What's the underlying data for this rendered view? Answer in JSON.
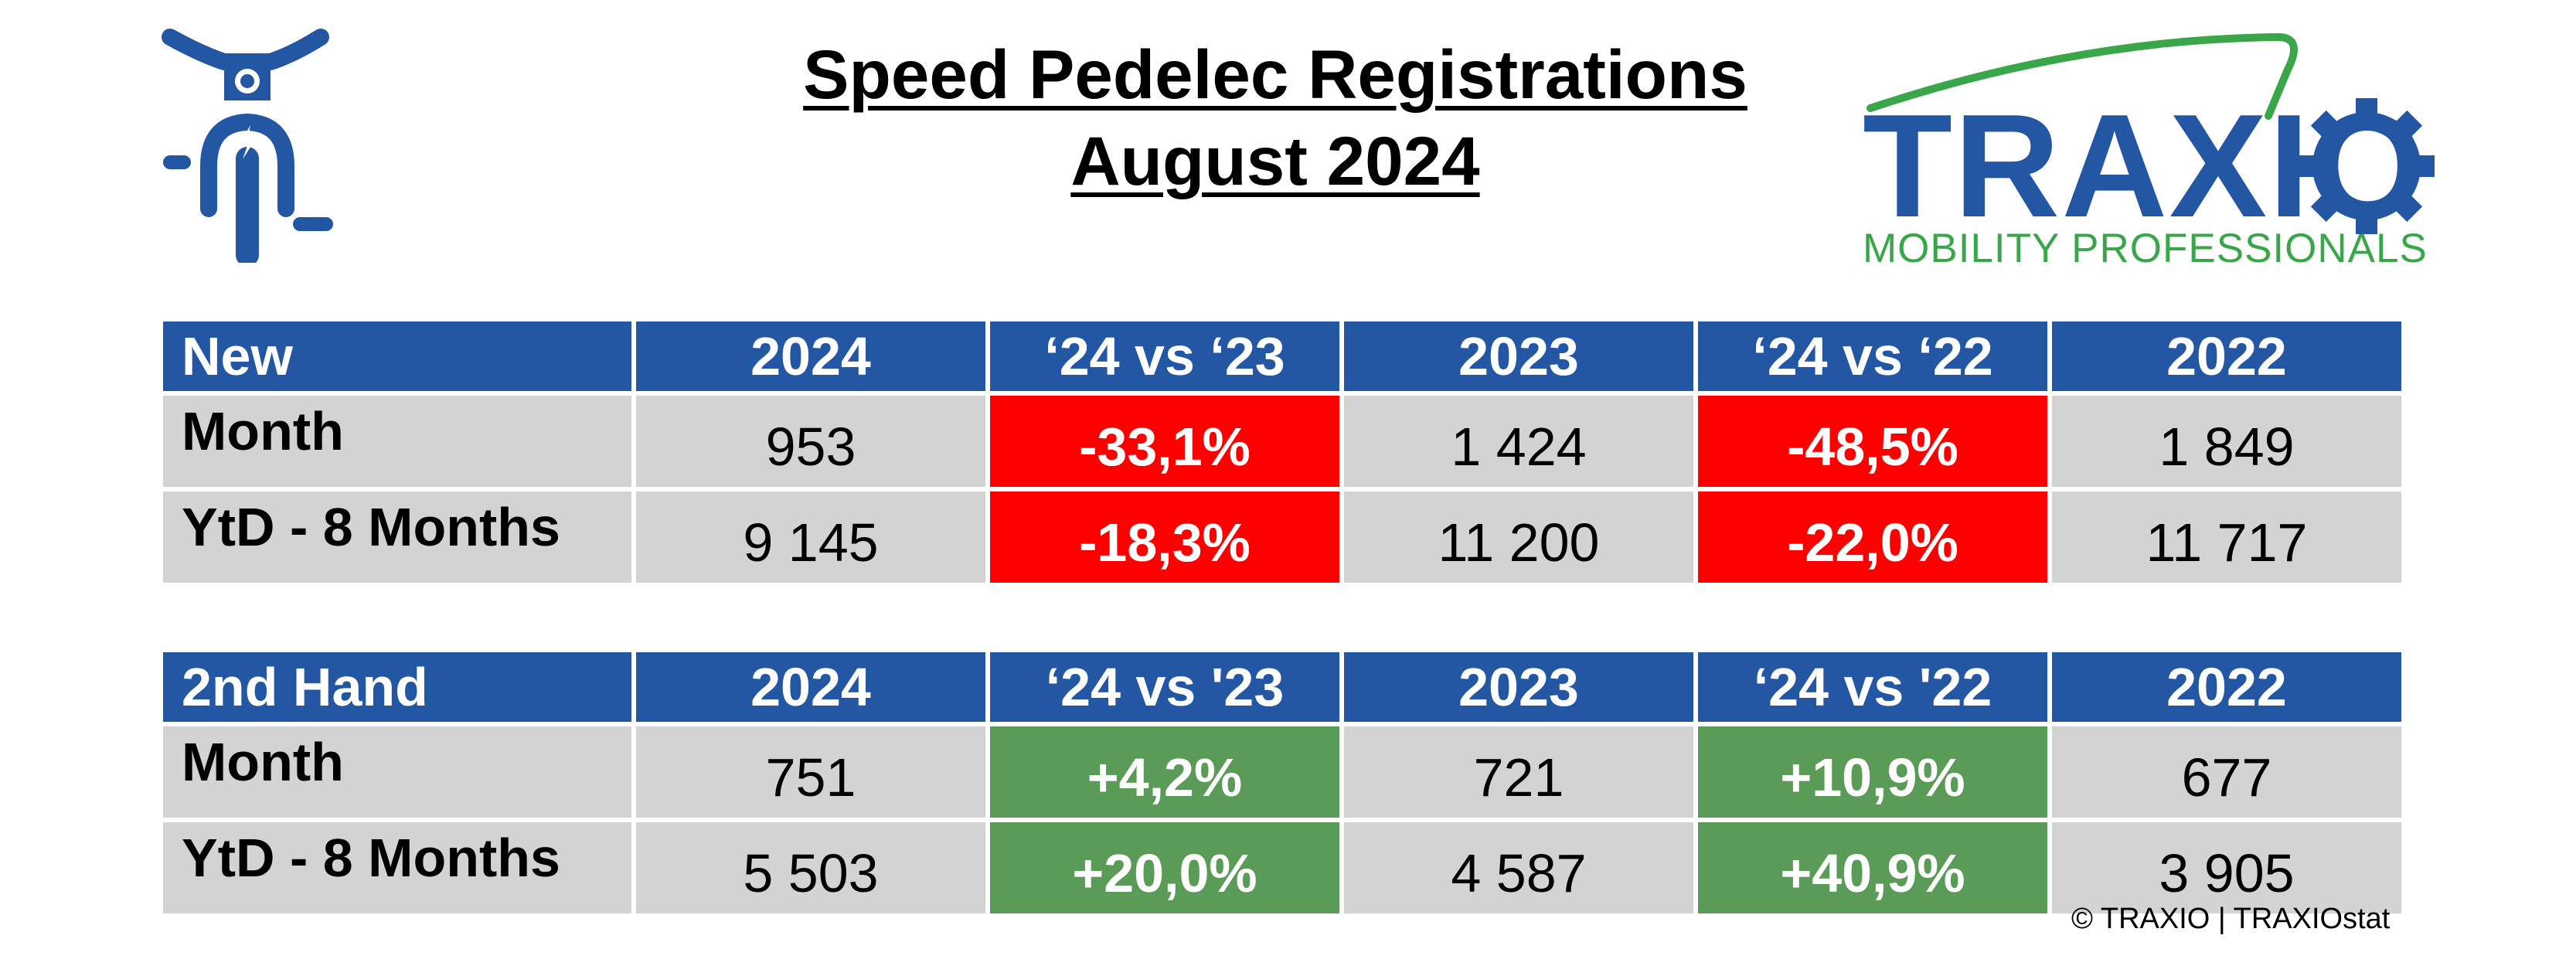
{
  "title": {
    "line1": "Speed Pedelec Registrations",
    "line2": "August 2024"
  },
  "logo": {
    "word": "TRAXIO",
    "tagline": "MOBILITY PROFESSIONALS",
    "icon": "gear-icon",
    "colors": {
      "blue": "#2356a3",
      "green": "#3aa64a"
    }
  },
  "rider_icon": "speed-pedelec-rider-icon",
  "colors": {
    "header": "#2356a3",
    "cell": "#d3d3d3",
    "negative": "#ff0000",
    "positive": "#5a9b58"
  },
  "new_table": {
    "headers": [
      "New",
      "2024",
      "‘24 vs ‘23",
      "2023",
      "‘24 vs ‘22",
      "2022"
    ],
    "rows": [
      {
        "label": "Month",
        "v2024": "953",
        "vs23": "-33,1%",
        "v2023": "1 424",
        "vs22": "-48,5%",
        "v2022": "1 849"
      },
      {
        "label": "YtD - 8 Months",
        "v2024": "9 145",
        "vs23": "-18,3%",
        "v2023": "11 200",
        "vs22": "-22,0%",
        "v2022": "11 717"
      }
    ]
  },
  "used_table": {
    "headers": [
      "2nd Hand",
      "2024",
      "‘24 vs '23",
      "2023",
      "‘24 vs '22",
      "2022"
    ],
    "rows": [
      {
        "label": "Month",
        "v2024": "751",
        "vs23": "+4,2%",
        "v2023": "721",
        "vs22": "+10,9%",
        "v2022": "677"
      },
      {
        "label": "YtD - 8 Months",
        "v2024": "5 503",
        "vs23": "+20,0%",
        "v2023": "4 587",
        "vs22": "+40,9%",
        "v2022": "3 905"
      }
    ]
  },
  "copyright": "© TRAXIO | TRAXIOstat"
}
